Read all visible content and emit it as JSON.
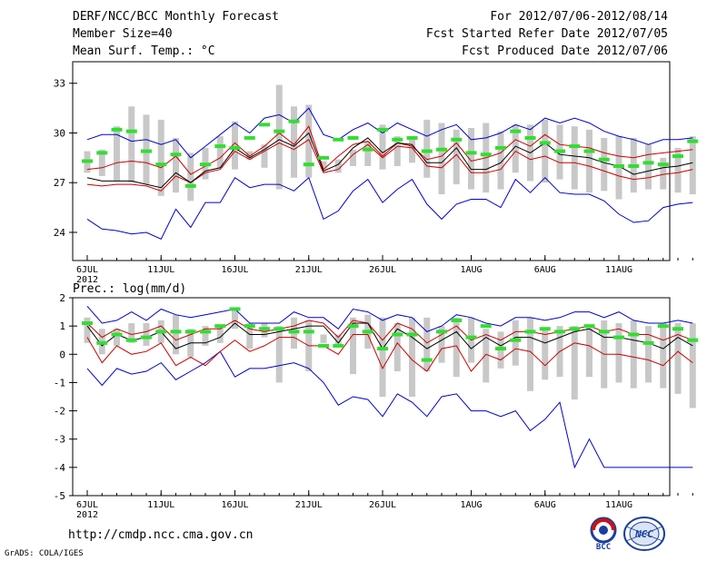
{
  "header": {
    "title": "DERF/NCC/BCC Monthly Forecast",
    "member_size": "Member Size=40",
    "variable": "Mean Surf. Temp.: °C",
    "forecast_period": "For 2012/07/06-2012/08/14",
    "start_date": "Fcst Started Refer Date 2012/07/05",
    "produced_date": "Fcst Produced Date 2012/07/06"
  },
  "footer": {
    "url": "http://cmdp.ncc.cma.gov.cn",
    "grads": "GrADS: COLA/IGES",
    "logo_bcc_text": "BCC",
    "logo_ncc_text": "NCC"
  },
  "colors": {
    "envelope": "#0000cc",
    "spread": "#cc0000",
    "mean": "#000000",
    "member_box": "#c8c8c8",
    "observed": "#33dd33"
  },
  "chart_data": [
    {
      "type": "line",
      "title": "Mean Surf. Temp.: °C",
      "ylim": [
        22.3,
        34.3
      ],
      "yticks": [
        24,
        27,
        30,
        33
      ],
      "xticks": [
        {
          "day": 0,
          "label": "6JUL"
        },
        {
          "day": 5,
          "label": "11JUL"
        },
        {
          "day": 10,
          "label": "16JUL"
        },
        {
          "day": 15,
          "label": "21JUL"
        },
        {
          "day": 20,
          "label": "26JUL"
        },
        {
          "day": 26,
          "label": "1AUG"
        },
        {
          "day": 31,
          "label": "6AUG"
        },
        {
          "day": 36,
          "label": "11AUG"
        }
      ],
      "year_label": "2012",
      "max": [
        29.6,
        29.9,
        29.9,
        29.5,
        29.6,
        29.3,
        29.6,
        28.5,
        29.2,
        29.9,
        30.6,
        30.0,
        30.9,
        31.1,
        30.6,
        31.5,
        29.9,
        29.6,
        30.2,
        30.6,
        30.0,
        30.6,
        30.2,
        29.8,
        30.2,
        30.5,
        29.6,
        29.7,
        30.0,
        30.5,
        30.2,
        30.9,
        30.6,
        30.9,
        30.6,
        30.1,
        29.8,
        29.6,
        29.3,
        29.6,
        29.6,
        29.7
      ],
      "upper": [
        27.8,
        27.9,
        28.2,
        28.3,
        28.2,
        27.9,
        28.6,
        27.5,
        28.0,
        28.5,
        29.4,
        28.6,
        29.2,
        30.0,
        29.3,
        30.4,
        27.8,
        28.6,
        29.3,
        29.5,
        28.6,
        29.4,
        29.2,
        28.4,
        28.6,
        29.4,
        28.3,
        28.5,
        28.8,
        29.6,
        29.2,
        29.9,
        29.3,
        29.2,
        29.1,
        28.8,
        28.6,
        28.5,
        28.7,
        28.8,
        28.9,
        29.0
      ],
      "mean": [
        27.3,
        27.1,
        27.1,
        27.1,
        26.9,
        26.7,
        27.6,
        27.0,
        27.7,
        27.9,
        29.1,
        28.5,
        29.0,
        29.6,
        29.2,
        30.0,
        27.7,
        28.1,
        29.1,
        29.7,
        28.8,
        29.4,
        29.3,
        28.2,
        28.2,
        29.1,
        27.8,
        27.8,
        28.2,
        29.2,
        28.8,
        29.4,
        28.7,
        28.6,
        28.5,
        28.2,
        28.0,
        27.5,
        27.7,
        27.9,
        28.0,
        28.2
      ],
      "lower": [
        26.9,
        26.8,
        26.9,
        26.9,
        26.8,
        26.5,
        27.4,
        27.0,
        27.6,
        27.8,
        28.9,
        28.4,
        28.9,
        29.4,
        29.0,
        29.6,
        27.6,
        27.8,
        28.7,
        29.3,
        28.5,
        29.2,
        29.1,
        28.0,
        27.9,
        28.7,
        27.6,
        27.6,
        27.8,
        28.9,
        28.4,
        28.6,
        28.2,
        28.2,
        28.0,
        27.7,
        27.4,
        27.2,
        27.3,
        27.5,
        27.6,
        27.8
      ],
      "min": [
        24.8,
        24.2,
        24.1,
        23.9,
        24.0,
        23.6,
        25.4,
        24.3,
        25.8,
        25.8,
        27.3,
        26.7,
        26.9,
        26.9,
        26.5,
        27.3,
        24.8,
        25.3,
        26.5,
        27.2,
        25.8,
        26.6,
        27.2,
        25.7,
        24.8,
        25.7,
        26.0,
        26.0,
        25.5,
        27.2,
        26.4,
        27.3,
        26.4,
        26.3,
        26.3,
        25.9,
        25.1,
        24.6,
        24.7,
        25.5,
        25.7,
        25.8
      ],
      "box_low": [
        27.6,
        27.4,
        27.1,
        27.0,
        26.9,
        26.2,
        26.4,
        25.9,
        27.2,
        27.9,
        27.8,
        28.4,
        27.9,
        26.6,
        27.3,
        27.3,
        27.8,
        27.6,
        28.0,
        28.0,
        27.8,
        28.0,
        28.2,
        27.3,
        26.3,
        26.9,
        26.6,
        26.4,
        26.6,
        27.6,
        27.1,
        27.0,
        27.2,
        26.6,
        26.4,
        26.5,
        26.0,
        26.4,
        26.6,
        26.6,
        26.4,
        26.3
      ],
      "box_high": [
        28.9,
        29.0,
        30.4,
        31.6,
        31.1,
        30.8,
        29.7,
        28.8,
        29.1,
        29.8,
        30.7,
        28.9,
        29.3,
        32.9,
        31.6,
        31.7,
        28.3,
        28.4,
        29.0,
        29.5,
        30.5,
        29.8,
        29.8,
        30.8,
        30.6,
        30.2,
        30.3,
        30.6,
        30.1,
        30.5,
        30.5,
        30.8,
        30.5,
        30.4,
        30.2,
        29.7,
        29.8,
        29.7,
        29.3,
        28.5,
        29.1,
        29.8
      ],
      "observed": [
        28.3,
        28.8,
        30.2,
        30.1,
        28.9,
        28.1,
        28.7,
        26.8,
        28.1,
        29.2,
        29.1,
        29.7,
        30.5,
        30.1,
        30.7,
        28.1,
        28.5,
        29.6,
        29.7,
        29.0,
        30.2,
        29.6,
        29.7,
        28.9,
        29.0,
        29.6,
        28.8,
        28.7,
        29.1,
        30.1,
        29.7,
        29.4,
        28.9,
        29.2,
        28.9,
        28.4,
        28.0,
        28.0,
        28.2,
        28.1,
        28.6,
        29.5
      ]
    },
    {
      "type": "line",
      "title": "Prec.: log(mm/d)",
      "ylim": [
        -5,
        2
      ],
      "yticks": [
        -5,
        -4,
        -3,
        -2,
        -1,
        0,
        1,
        2
      ],
      "xticks": [
        {
          "day": 0,
          "label": "6JUL"
        },
        {
          "day": 5,
          "label": "11JUL"
        },
        {
          "day": 10,
          "label": "16JUL"
        },
        {
          "day": 15,
          "label": "21JUL"
        },
        {
          "day": 20,
          "label": "26JUL"
        },
        {
          "day": 26,
          "label": "1AUG"
        },
        {
          "day": 31,
          "label": "6AUG"
        },
        {
          "day": 36,
          "label": "11AUG"
        }
      ],
      "year_label": "2012",
      "max": [
        1.7,
        1.1,
        1.2,
        1.5,
        1.2,
        1.6,
        1.4,
        1.3,
        1.4,
        1.5,
        1.6,
        1.1,
        1.1,
        1.1,
        1.5,
        1.3,
        1.3,
        0.9,
        1.6,
        1.5,
        1.2,
        1.4,
        1.3,
        0.8,
        1.0,
        1.4,
        1.3,
        1.1,
        1.0,
        1.3,
        1.3,
        1.2,
        1.3,
        1.5,
        1.5,
        1.3,
        1.5,
        1.2,
        1.1,
        1.1,
        1.2,
        1.1
      ],
      "upper": [
        1.1,
        0.6,
        0.9,
        0.7,
        0.8,
        1.0,
        0.5,
        0.7,
        0.9,
        0.9,
        1.2,
        0.9,
        0.8,
        0.9,
        1.0,
        1.2,
        1.1,
        0.6,
        1.2,
        1.1,
        0.5,
        1.1,
        0.9,
        0.4,
        0.7,
        1.0,
        0.5,
        0.7,
        0.5,
        0.8,
        0.8,
        0.7,
        0.8,
        0.9,
        1.0,
        0.8,
        0.9,
        0.7,
        0.7,
        0.5,
        0.7,
        0.5
      ],
      "mean": [
        1.0,
        0.3,
        0.7,
        0.5,
        0.6,
        0.8,
        0.2,
        0.4,
        0.4,
        0.6,
        1.1,
        0.7,
        0.7,
        0.8,
        0.9,
        1.0,
        1.0,
        0.4,
        1.1,
        1.1,
        0.2,
        0.9,
        0.6,
        0.2,
        0.5,
        0.8,
        0.2,
        0.6,
        0.3,
        0.6,
        0.6,
        0.4,
        0.6,
        0.8,
        0.9,
        0.6,
        0.6,
        0.5,
        0.4,
        0.2,
        0.6,
        0.3
      ],
      "lower": [
        0.6,
        -0.3,
        0.3,
        0.0,
        0.1,
        0.4,
        -0.4,
        -0.1,
        -0.4,
        0.1,
        0.5,
        0.1,
        0.3,
        0.6,
        0.6,
        0.3,
        0.3,
        0.0,
        0.7,
        0.7,
        -0.5,
        0.4,
        -0.2,
        -0.6,
        0.2,
        0.3,
        -0.6,
        0.0,
        -0.2,
        0.2,
        0.1,
        -0.4,
        0.1,
        0.4,
        0.3,
        0.0,
        0.0,
        -0.1,
        -0.2,
        -0.4,
        0.1,
        -0.3
      ],
      "min": [
        -0.5,
        -1.1,
        -0.5,
        -0.7,
        -0.6,
        -0.3,
        -0.9,
        -0.6,
        -0.3,
        0.1,
        -0.8,
        -0.5,
        -0.5,
        -0.4,
        -0.3,
        -0.5,
        -1.0,
        -1.8,
        -1.5,
        -1.6,
        -2.2,
        -1.4,
        -1.7,
        -2.2,
        -1.5,
        -1.4,
        -2.0,
        -2.0,
        -2.2,
        -2.0,
        -2.7,
        -2.3,
        -1.7,
        -4.0,
        -3.0,
        -4.0,
        -4.0,
        -4.0,
        -4.0,
        -4.0,
        -4.0,
        -4.0
      ],
      "box_low": [
        0.4,
        0.0,
        0.3,
        0.4,
        0.3,
        0.4,
        0.0,
        -0.1,
        0.3,
        0.4,
        0.9,
        0.2,
        0.6,
        -1.0,
        0.2,
        -0.6,
        0.4,
        0.3,
        -0.7,
        0.2,
        -1.5,
        -0.6,
        -1.5,
        -0.6,
        -0.3,
        -0.8,
        -0.3,
        -1.0,
        -0.5,
        -0.4,
        -1.3,
        -0.9,
        -0.8,
        -1.6,
        -0.8,
        -1.2,
        -1.0,
        -1.2,
        -1.0,
        -1.2,
        -1.4,
        -1.9
      ],
      "box_high": [
        1.3,
        0.9,
        0.9,
        1.1,
        1.1,
        1.2,
        1.4,
        0.9,
        1.0,
        1.0,
        1.6,
        1.1,
        1.1,
        1.0,
        1.3,
        1.2,
        0.7,
        0.7,
        1.3,
        1.4,
        1.3,
        1.1,
        1.3,
        1.3,
        1.0,
        1.3,
        1.3,
        0.9,
        0.8,
        1.2,
        1.3,
        0.9,
        1.0,
        1.0,
        1.0,
        1.2,
        1.1,
        1.2,
        1.0,
        1.1,
        1.1,
        1.1
      ],
      "observed": [
        1.1,
        0.4,
        0.7,
        0.5,
        0.6,
        0.8,
        0.8,
        0.8,
        0.8,
        1.0,
        1.6,
        1.0,
        0.9,
        0.9,
        0.8,
        0.8,
        0.3,
        0.3,
        1.0,
        0.8,
        0.2,
        0.7,
        0.7,
        -0.2,
        0.8,
        1.2,
        0.6,
        1.0,
        0.2,
        0.5,
        0.8,
        0.9,
        0.8,
        0.9,
        1.0,
        0.8,
        0.6,
        0.7,
        0.4,
        1.0,
        0.9,
        0.5
      ]
    }
  ]
}
